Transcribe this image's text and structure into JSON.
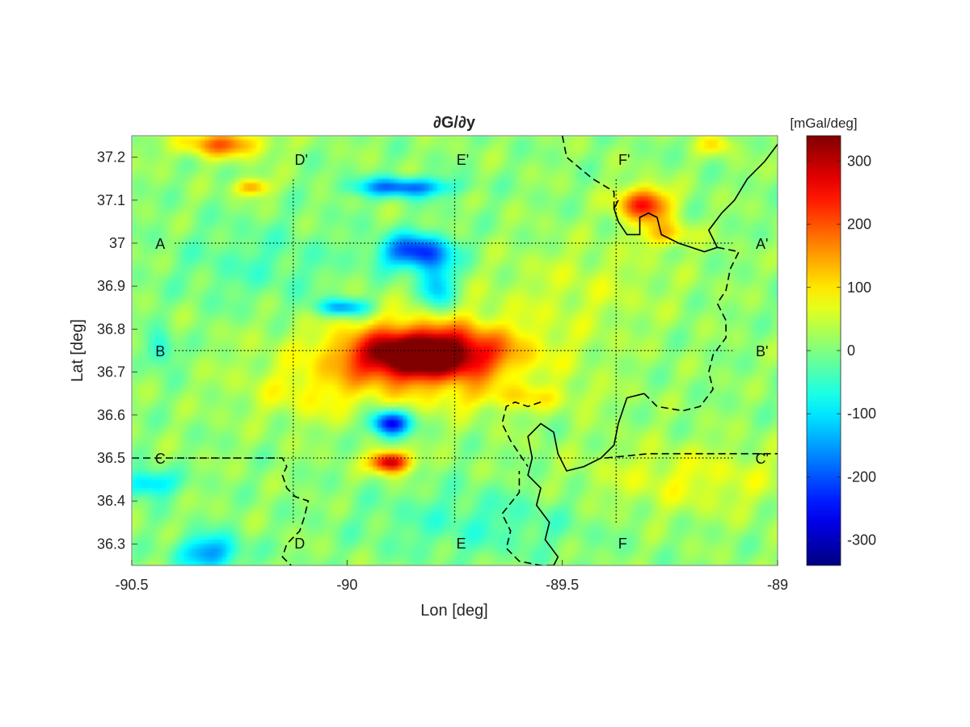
{
  "chart_data": {
    "type": "heatmap",
    "title": "∂G/∂y",
    "xlabel": "Lon [deg]",
    "ylabel": "Lat [deg]",
    "xlim": [
      -90.5,
      -89
    ],
    "ylim": [
      36.25,
      37.25
    ],
    "x_ticks": [
      -90.5,
      -90,
      -89.5,
      -89
    ],
    "x_tick_labels": [
      "-90.5",
      "-90",
      "-89.5",
      "-89"
    ],
    "y_ticks": [
      36.3,
      36.4,
      36.5,
      36.6,
      36.7,
      36.8,
      36.9,
      37,
      37.1,
      37.2
    ],
    "y_tick_labels": [
      "36.3",
      "36.4",
      "36.5",
      "36.6",
      "36.7",
      "36.8",
      "36.9",
      "37",
      "37.1",
      "37.2"
    ],
    "colormap": "jet",
    "colorbar": {
      "label": "[mGal/deg]",
      "clim": [
        -340,
        340
      ],
      "ticks": [
        -300,
        -200,
        -100,
        0,
        100,
        200,
        300
      ],
      "tick_labels": [
        "-300",
        "-200",
        "-100",
        "0",
        "100",
        "200",
        "300"
      ]
    },
    "anomalies": [
      {
        "lon": -89.83,
        "lat": 36.74,
        "value": 340,
        "rx": 0.15,
        "ry": 0.055
      },
      {
        "lon": -89.76,
        "lat": 36.75,
        "value": 90,
        "rx": 0.24,
        "ry": 0.08
      },
      {
        "lon": -89.87,
        "lat": 36.72,
        "value": 60,
        "rx": 0.3,
        "ry": 0.12
      },
      {
        "lon": -89.9,
        "lat": 36.49,
        "value": 310,
        "rx": 0.045,
        "ry": 0.025
      },
      {
        "lon": -89.9,
        "lat": 36.58,
        "value": -300,
        "rx": 0.045,
        "ry": 0.03
      },
      {
        "lon": -89.84,
        "lat": 36.98,
        "value": -240,
        "rx": 0.08,
        "ry": 0.04
      },
      {
        "lon": -89.79,
        "lat": 36.9,
        "value": -140,
        "rx": 0.04,
        "ry": 0.06
      },
      {
        "lon": -89.87,
        "lat": 37.13,
        "value": -210,
        "rx": 0.11,
        "ry": 0.022
      },
      {
        "lon": -90.01,
        "lat": 36.85,
        "value": -170,
        "rx": 0.06,
        "ry": 0.02
      },
      {
        "lon": -89.31,
        "lat": 37.09,
        "value": 240,
        "rx": 0.06,
        "ry": 0.04
      },
      {
        "lon": -89.26,
        "lat": 37.02,
        "value": 110,
        "rx": 0.06,
        "ry": 0.03
      },
      {
        "lon": -90.29,
        "lat": 37.23,
        "value": 170,
        "rx": 0.1,
        "ry": 0.03
      },
      {
        "lon": -90.22,
        "lat": 37.13,
        "value": 150,
        "rx": 0.04,
        "ry": 0.02
      },
      {
        "lon": -89.14,
        "lat": 37.23,
        "value": 90,
        "rx": 0.04,
        "ry": 0.025
      },
      {
        "lon": -90.32,
        "lat": 36.28,
        "value": -170,
        "rx": 0.07,
        "ry": 0.04
      },
      {
        "lon": -90.46,
        "lat": 36.44,
        "value": -140,
        "rx": 0.06,
        "ry": 0.03
      },
      {
        "lon": -90.43,
        "lat": 36.75,
        "value": -100,
        "rx": 0.03,
        "ry": 0.04
      },
      {
        "lon": -89.6,
        "lat": 36.64,
        "value": 60,
        "rx": 0.18,
        "ry": 0.03
      },
      {
        "lon": -89.2,
        "lat": 36.45,
        "value": 60,
        "rx": 0.25,
        "ry": 0.08
      },
      {
        "lon": -90.08,
        "lat": 36.65,
        "value": 50,
        "rx": 0.15,
        "ry": 0.06
      },
      {
        "lon": -89.45,
        "lat": 36.9,
        "value": 40,
        "rx": 0.2,
        "ry": 0.1
      },
      {
        "lon": -89.7,
        "lat": 36.35,
        "value": -50,
        "rx": 0.25,
        "ry": 0.08
      },
      {
        "lon": -90.2,
        "lat": 36.95,
        "value": -40,
        "rx": 0.2,
        "ry": 0.1
      }
    ],
    "profiles": [
      {
        "name": "A",
        "start_label": "A",
        "end_label": "A'",
        "orientation": "horizontal",
        "lat": 37.0,
        "from": -90.4,
        "to": -89.1
      },
      {
        "name": "B",
        "start_label": "B",
        "end_label": "B'",
        "orientation": "horizontal",
        "lat": 36.75,
        "from": -90.4,
        "to": -89.1
      },
      {
        "name": "C",
        "start_label": "C",
        "end_label": "C'",
        "orientation": "horizontal",
        "lat": 36.5,
        "from": -90.4,
        "to": -89.1
      },
      {
        "name": "D",
        "start_label": "D",
        "end_label": "D'",
        "orientation": "vertical",
        "lon": -90.125,
        "from": 36.35,
        "to": 37.15
      },
      {
        "name": "E",
        "start_label": "E",
        "end_label": "E'",
        "orientation": "vertical",
        "lon": -89.75,
        "from": 36.35,
        "to": 37.15
      },
      {
        "name": "F",
        "start_label": "F",
        "end_label": "F'",
        "orientation": "vertical",
        "lon": -89.375,
        "from": 36.35,
        "to": 37.15
      }
    ],
    "boundaries": {
      "solid": [
        [
          [
            -89.0,
            37.23
          ],
          [
            -89.03,
            37.19
          ],
          [
            -89.07,
            37.15
          ],
          [
            -89.1,
            37.1
          ],
          [
            -89.13,
            37.07
          ],
          [
            -89.16,
            37.03
          ],
          [
            -89.14,
            36.99
          ],
          [
            -89.17,
            36.98
          ],
          [
            -89.23,
            37.0
          ],
          [
            -89.27,
            37.02
          ],
          [
            -89.28,
            37.06
          ],
          [
            -89.3,
            37.07
          ],
          [
            -89.32,
            37.06
          ],
          [
            -89.32,
            37.02
          ],
          [
            -89.35,
            37.02
          ],
          [
            -89.37,
            37.05
          ],
          [
            -89.38,
            37.08
          ],
          [
            -89.37,
            37.1
          ]
        ],
        [
          [
            -89.31,
            36.65
          ],
          [
            -89.35,
            36.64
          ],
          [
            -89.37,
            36.58
          ],
          [
            -89.38,
            36.53
          ],
          [
            -89.41,
            36.5
          ],
          [
            -89.45,
            36.48
          ],
          [
            -89.49,
            36.47
          ],
          [
            -89.51,
            36.51
          ],
          [
            -89.52,
            36.56
          ],
          [
            -89.55,
            36.58
          ],
          [
            -89.58,
            36.55
          ],
          [
            -89.57,
            36.5
          ],
          [
            -89.58,
            36.46
          ],
          [
            -89.55,
            36.43
          ],
          [
            -89.56,
            36.39
          ],
          [
            -89.53,
            36.35
          ],
          [
            -89.54,
            36.31
          ],
          [
            -89.51,
            36.27
          ],
          [
            -89.52,
            36.25
          ]
        ]
      ],
      "dashed": [
        [
          [
            -89.5,
            37.25
          ],
          [
            -89.49,
            37.2
          ],
          [
            -89.43,
            37.15
          ],
          [
            -89.38,
            37.12
          ],
          [
            -89.38,
            37.08
          ]
        ],
        [
          [
            -89.14,
            36.99
          ],
          [
            -89.09,
            36.98
          ],
          [
            -89.11,
            36.94
          ],
          [
            -89.12,
            36.89
          ],
          [
            -89.14,
            36.86
          ],
          [
            -89.12,
            36.82
          ],
          [
            -89.12,
            36.78
          ],
          [
            -89.15,
            36.74
          ],
          [
            -89.16,
            36.7
          ],
          [
            -89.15,
            36.66
          ],
          [
            -89.18,
            36.62
          ],
          [
            -89.22,
            36.61
          ],
          [
            -89.28,
            36.62
          ],
          [
            -89.31,
            36.65
          ]
        ],
        [
          [
            -89.55,
            36.63
          ],
          [
            -89.58,
            36.62
          ],
          [
            -89.61,
            36.63
          ],
          [
            -89.63,
            36.62
          ],
          [
            -89.64,
            36.58
          ],
          [
            -89.62,
            36.54
          ],
          [
            -89.6,
            36.51
          ],
          [
            -89.58,
            36.48
          ]
        ],
        [
          [
            -89.52,
            36.25
          ],
          [
            -89.55,
            36.25
          ],
          [
            -89.6,
            36.26
          ],
          [
            -89.63,
            36.29
          ],
          [
            -89.62,
            36.33
          ],
          [
            -89.64,
            36.37
          ],
          [
            -89.6,
            36.42
          ],
          [
            -89.6,
            36.47
          ]
        ],
        [
          [
            -90.5,
            36.5
          ],
          [
            -90.4,
            36.5
          ],
          [
            -90.3,
            36.5
          ],
          [
            -90.2,
            36.5
          ],
          [
            -90.15,
            36.5
          ],
          [
            -90.14,
            36.48
          ],
          [
            -90.15,
            36.46
          ],
          [
            -90.14,
            36.43
          ],
          [
            -90.12,
            36.41
          ],
          [
            -90.09,
            36.4
          ],
          [
            -90.1,
            36.36
          ],
          [
            -90.11,
            36.33
          ],
          [
            -90.14,
            36.3
          ],
          [
            -90.15,
            36.27
          ],
          [
            -90.13,
            36.25
          ]
        ],
        [
          [
            -89.4,
            36.5
          ],
          [
            -89.3,
            36.51
          ],
          [
            -89.2,
            36.51
          ],
          [
            -89.1,
            36.51
          ],
          [
            -89.0,
            36.51
          ]
        ]
      ]
    }
  }
}
